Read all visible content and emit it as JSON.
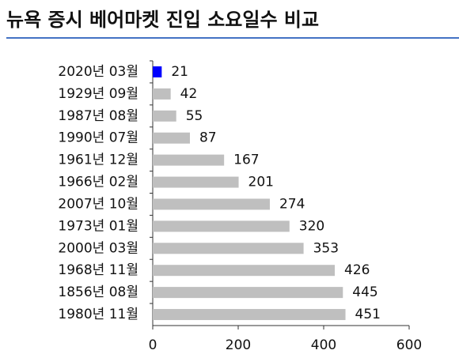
{
  "chart_data": {
    "type": "bar",
    "orientation": "horizontal",
    "title": "뉴욕 증시 베어마켓 진입 소요일수 비교",
    "categories": [
      "2020년 03월",
      "1929년 09월",
      "1987년 08월",
      "1990년 07월",
      "1961년 12월",
      "1966년 02월",
      "2007년 10월",
      "1973년 01월",
      "2000년 03월",
      "1968년 11월",
      "1856년 08월",
      "1980년 11월"
    ],
    "values": [
      21,
      42,
      55,
      87,
      167,
      201,
      274,
      320,
      353,
      426,
      445,
      451
    ],
    "colors": [
      "#0000ff",
      "#bfbfbf",
      "#bfbfbf",
      "#bfbfbf",
      "#bfbfbf",
      "#bfbfbf",
      "#bfbfbf",
      "#bfbfbf",
      "#bfbfbf",
      "#bfbfbf",
      "#bfbfbf",
      "#bfbfbf"
    ],
    "title_rule_color": "#4472c4",
    "xlim": [
      0,
      600
    ],
    "xticks": [
      0,
      200,
      400,
      600
    ],
    "grid": false
  }
}
